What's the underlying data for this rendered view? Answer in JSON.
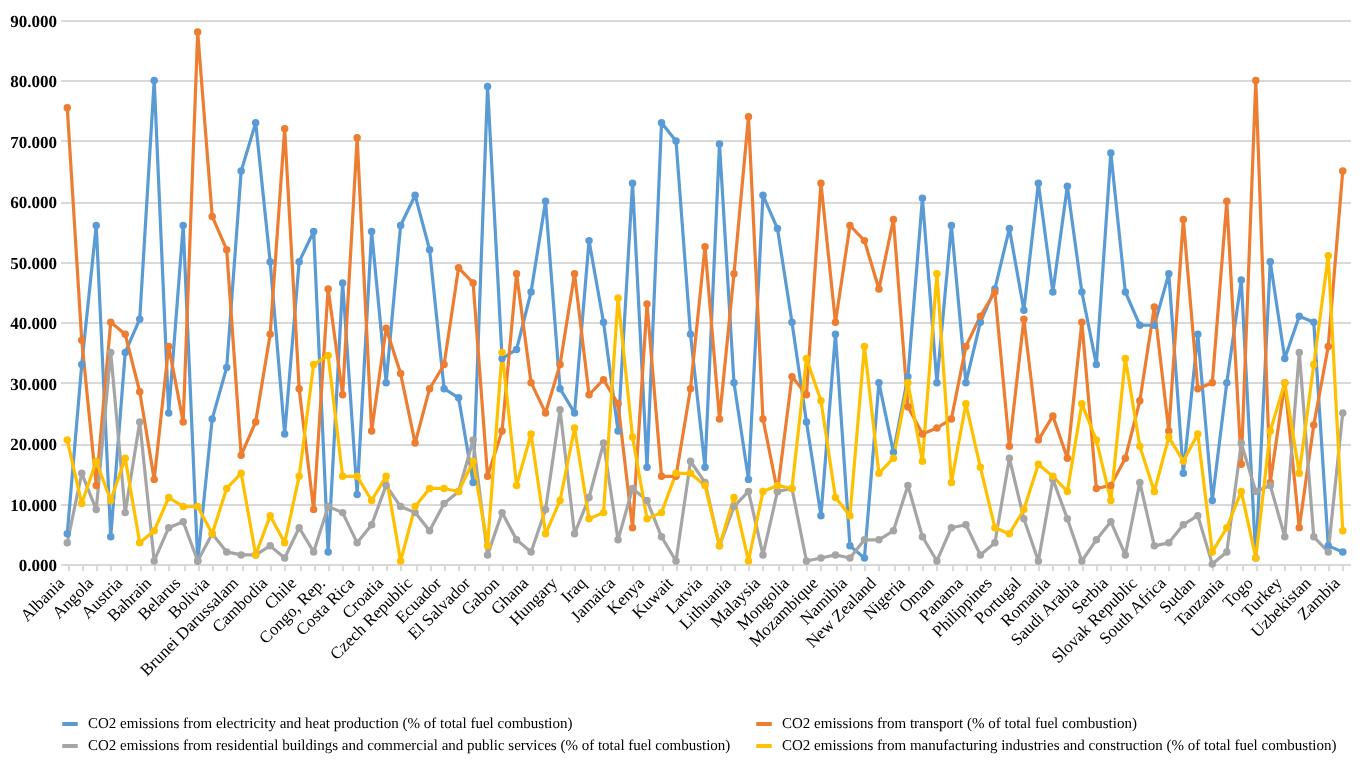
{
  "chart_data": {
    "type": "line",
    "categories": [
      "Albania",
      null,
      "Angola",
      null,
      "Austria",
      null,
      "Bahrain",
      null,
      "Belarus",
      null,
      "Bolivia",
      null,
      "Brunei Darussalam",
      null,
      "Cambodia",
      null,
      "Chile",
      null,
      "Congo, Rep.",
      null,
      "Costa Rica",
      null,
      "Croatia",
      null,
      "Czech Republic",
      null,
      "Ecuador",
      null,
      "El Salvador",
      null,
      "Gabon",
      null,
      "Ghana",
      null,
      "Hungary",
      null,
      "Iraq",
      null,
      "Jamaica",
      null,
      "Kenya",
      null,
      "Kuwait",
      null,
      "Latvia",
      null,
      "Lithuania",
      null,
      "Malaysia",
      null,
      "Mongolia",
      null,
      "Mozambique",
      null,
      "Namibia",
      null,
      "New Zealand",
      null,
      "Nigeria",
      null,
      "Oman",
      null,
      "Panama",
      null,
      "Philippines",
      null,
      "Portugal",
      null,
      "Romania",
      null,
      "Saudi Arabia",
      null,
      "Serbia",
      null,
      "Slovak Republic",
      null,
      "South Africa",
      null,
      "Sudan",
      null,
      "Tanzania",
      null,
      "Togo",
      null,
      "Turkey",
      null,
      "Uzbekistan",
      null,
      "Zambia"
    ],
    "series": [
      {
        "name": "CO2 emissions from electricity and heat production (% of total fuel combustion)",
        "color": "#5b9bd5",
        "values": [
          5,
          33,
          56,
          4.5,
          35,
          40.5,
          80,
          25,
          56,
          0.5,
          24,
          32.5,
          65,
          73,
          50,
          21.5,
          50,
          55,
          2,
          46.5,
          11.5,
          55,
          30,
          56,
          61,
          52,
          29,
          27.5,
          13.5,
          79,
          34,
          35.5,
          45,
          60,
          29,
          25,
          53.5,
          40,
          22,
          63,
          16,
          73,
          70,
          38,
          16,
          69.5,
          30,
          14,
          61,
          55.5,
          40,
          23.5,
          8,
          38,
          3,
          1,
          30,
          18.5,
          31,
          60.5,
          30,
          56,
          30,
          40,
          45.5,
          55.5,
          42,
          63,
          45,
          62.5,
          45,
          33,
          68,
          45,
          39.5,
          39.5,
          48,
          15,
          38,
          10.5,
          30,
          47,
          1,
          50,
          34,
          41,
          40,
          3,
          2
        ]
      },
      {
        "name": "CO2 emissions from transport (% of total fuel combustion)",
        "color": "#ed7d31",
        "values": [
          75.5,
          37,
          13,
          40,
          38,
          28.5,
          14,
          36,
          23.5,
          88,
          57.5,
          52,
          18,
          23.5,
          38,
          72,
          29,
          9,
          45.5,
          28,
          70.5,
          22,
          39,
          31.5,
          20,
          29,
          33,
          49,
          46.5,
          14.5,
          22,
          48,
          30,
          25,
          33,
          48,
          28,
          30.5,
          26.5,
          6,
          43,
          14.5,
          14.5,
          29,
          52.5,
          24,
          48,
          74,
          24,
          12,
          31,
          28,
          63,
          40,
          56,
          53.5,
          45.5,
          57,
          26,
          21.5,
          22.5,
          24,
          36,
          41,
          45,
          19.5,
          40.5,
          20.5,
          24.5,
          17.5,
          40,
          12.5,
          13,
          17.5,
          27,
          42.5,
          22,
          57,
          29,
          30,
          60,
          16.5,
          80,
          13.5,
          30,
          6,
          23,
          36,
          65
        ]
      },
      {
        "name": "CO2 emissions from residential buildings and commercial and public services (% of total fuel combustion)",
        "color": "#a5a5a5",
        "values": [
          3.5,
          15,
          9,
          35,
          8.5,
          23.5,
          0.5,
          6,
          7,
          0.5,
          5,
          2,
          1.5,
          1.5,
          3,
          1,
          6,
          2,
          9.5,
          8.5,
          3.5,
          6.5,
          13,
          9.5,
          8.5,
          5.5,
          10,
          12,
          20.5,
          1.5,
          8.5,
          4,
          2,
          9,
          25.5,
          5,
          11,
          20,
          4,
          12.5,
          10.5,
          4.5,
          0.5,
          17,
          13.5,
          3,
          9.5,
          12,
          1.5,
          12,
          12.5,
          0.5,
          1,
          1.5,
          1,
          4,
          4,
          5.5,
          13,
          4.5,
          0.5,
          6,
          6.5,
          1.5,
          3.5,
          17.5,
          7.5,
          0.5,
          14,
          7.5,
          0.5,
          4,
          7,
          1.5,
          13.5,
          3,
          3.5,
          6.5,
          8,
          0,
          2,
          20,
          12,
          13,
          4.5,
          35,
          4.5,
          2,
          25
        ]
      },
      {
        "name": "CO2 emissions from manufacturing industries and construction (% of total fuel combustion)",
        "color": "#ffc000",
        "values": [
          20.5,
          10,
          17,
          10.5,
          17.5,
          3.5,
          5.5,
          11,
          9.5,
          9.5,
          5,
          12.5,
          15,
          1.5,
          8,
          3.5,
          14.5,
          33,
          34.5,
          14.5,
          14.5,
          10.5,
          14.5,
          0.5,
          9.5,
          12.5,
          12.5,
          12,
          17,
          3,
          35,
          13,
          21.5,
          5,
          10.5,
          22.5,
          7.5,
          8.5,
          44,
          21,
          7.5,
          8.5,
          15,
          15,
          13,
          3,
          11,
          0.5,
          12,
          13,
          12.5,
          34,
          27,
          11,
          8,
          36,
          15,
          17.5,
          30,
          17,
          48,
          13.5,
          26.5,
          16,
          6,
          5,
          9,
          16.5,
          14.5,
          12,
          26.5,
          20.5,
          10.5,
          34,
          19.5,
          12,
          21,
          17,
          21.5,
          2,
          6,
          12,
          1,
          22,
          30,
          15,
          33,
          51,
          5.5
        ]
      }
    ],
    "ylim": [
      0,
      90
    ],
    "yticks": [
      {
        "value": 0,
        "label": "0.000"
      },
      {
        "value": 10,
        "label": "10.000"
      },
      {
        "value": 20,
        "label": "20.000"
      },
      {
        "value": 30,
        "label": "30.000"
      },
      {
        "value": 40,
        "label": "40.000"
      },
      {
        "value": 50,
        "label": "50.000"
      },
      {
        "value": 60,
        "label": "60.000"
      },
      {
        "value": 70,
        "label": "70.000"
      },
      {
        "value": 80,
        "label": "80.000"
      },
      {
        "value": 90,
        "label": "90.000"
      }
    ],
    "grid": "y",
    "legend": "bottom",
    "marker": "circle",
    "line_style": "solid"
  }
}
